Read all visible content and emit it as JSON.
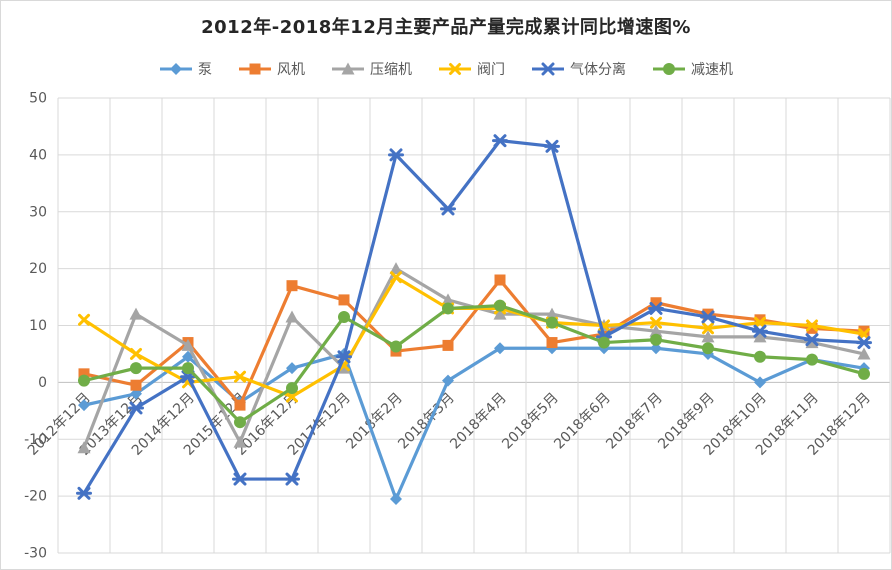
{
  "chart_data": {
    "type": "line",
    "title": "2012年-2018年12月主要产品产量完成累计同比增速图%",
    "legend_position": "top",
    "grid": true,
    "ylim": [
      -30,
      50
    ],
    "ytick_step": 10,
    "ytick_labels": [
      "50",
      "40",
      "30",
      "20",
      "10",
      "0",
      "-10",
      "-20",
      "-30"
    ],
    "categories": [
      "2012年12月",
      "2013年12月",
      "2014年12月",
      "2015年12月",
      "2016年12月",
      "2017年12月",
      "2018年2月",
      "2018年3月",
      "2018年4月",
      "2018年5月",
      "2018年6月",
      "2018年7月",
      "2018年9月",
      "2018年10月",
      "2018年11月",
      "2018年12月"
    ],
    "series": [
      {
        "key": "pump",
        "name": "泵",
        "color": "#5B9BD5",
        "marker": "diamond",
        "values": [
          -4,
          -2,
          4.5,
          -3.5,
          2.5,
          5,
          -20.5,
          0.3,
          6,
          6,
          6,
          6,
          5,
          0,
          4,
          2.5
        ]
      },
      {
        "key": "fan",
        "name": "风机",
        "color": "#ED7D31",
        "marker": "square",
        "values": [
          1.5,
          -0.5,
          7,
          -4,
          17,
          14.5,
          5.5,
          6.5,
          18,
          7,
          8.5,
          14,
          12,
          11,
          9.5,
          9
        ]
      },
      {
        "key": "compressor",
        "name": "压缩机",
        "color": "#A5A5A5",
        "marker": "triangle",
        "values": [
          -11.5,
          12,
          6.5,
          -10.5,
          11.5,
          2.5,
          20,
          14.5,
          12,
          12,
          10,
          9,
          8,
          8,
          7,
          5
        ]
      },
      {
        "key": "valve",
        "name": "阀门",
        "color": "#FFC000",
        "marker": "x",
        "values": [
          11,
          5,
          0,
          1,
          -2.5,
          3,
          18.5,
          13,
          13,
          10.5,
          10,
          10.5,
          9.5,
          10.5,
          10,
          8.5
        ]
      },
      {
        "key": "gas-separation",
        "name": "气体分离",
        "color": "#4472C4",
        "marker": "asterisk",
        "values": [
          -19.5,
          -4.5,
          1,
          -17,
          -17,
          4.5,
          40,
          30.5,
          42.5,
          41.5,
          8,
          13,
          11.5,
          9,
          7.5,
          7
        ]
      },
      {
        "key": "reducer",
        "name": "减速机",
        "color": "#70AD47",
        "marker": "circle",
        "values": [
          0.3,
          2.5,
          2.5,
          -7,
          -1,
          11.5,
          6.3,
          13,
          13.5,
          10.5,
          7,
          7.5,
          6,
          4.5,
          4,
          1.5
        ]
      }
    ],
    "colors": {
      "gridline": "#D9D9D9",
      "zero_axis": "#BFBFBF",
      "axis_text": "#595959",
      "title_text": "#262626"
    }
  }
}
